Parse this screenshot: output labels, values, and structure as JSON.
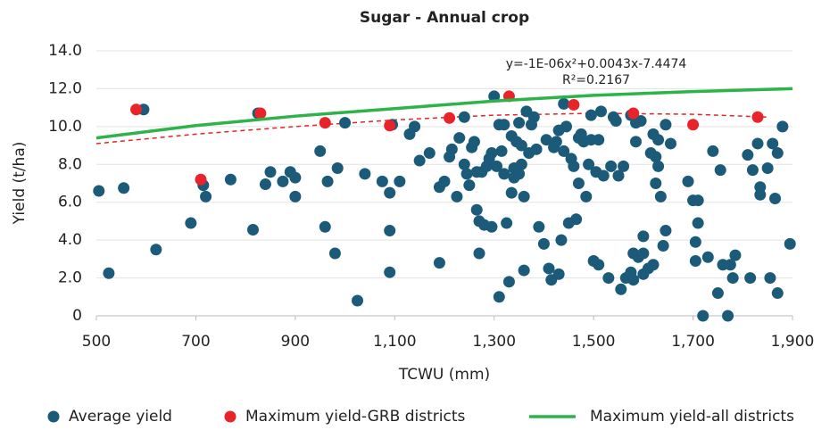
{
  "chart_data": {
    "type": "scatter",
    "title": "Sugar - Annual crop",
    "xlabel": "TCWU (mm)",
    "ylabel": "Yield (t/ha)",
    "annotations": [
      "y=-1E-06x²+0.0043x-7.4474",
      "R²=0.2167"
    ],
    "xlim": [
      500,
      1900
    ],
    "xticks": [
      500,
      700,
      900,
      {
        "value": 1100,
        "label": "1,100"
      },
      {
        "value": 1300,
        "label": "1,300"
      },
      {
        "value": 1500,
        "label": "1,500"
      },
      {
        "value": 1700,
        "label": "1,700"
      },
      {
        "value": 1900,
        "label": "1,900"
      }
    ],
    "ylim": [
      0,
      14
    ],
    "yticks": [
      0,
      {
        "value": 2,
        "label": "2.0"
      },
      {
        "value": 4,
        "label": "4.0"
      },
      {
        "value": 6,
        "label": "6.0"
      },
      {
        "value": 8,
        "label": "8.0"
      },
      {
        "value": 10,
        "label": "10.0"
      },
      {
        "value": 12,
        "label": "12.0"
      },
      {
        "value": 14,
        "label": "14.0"
      }
    ],
    "grid": true,
    "legend": "bottom",
    "series": [
      {
        "name": "Average yield",
        "color": "#1b5a78",
        "style": "points",
        "x": [
          505,
          525,
          555,
          595,
          620,
          690,
          715,
          720,
          770,
          815,
          825,
          840,
          850,
          875,
          890,
          900,
          900,
          950,
          960,
          965,
          980,
          985,
          1000,
          1025,
          1040,
          1075,
          1090,
          1090,
          1090,
          1095,
          1110,
          1130,
          1140,
          1150,
          1170,
          1190,
          1190,
          1200,
          1210,
          1215,
          1225,
          1230,
          1240,
          1240,
          1245,
          1250,
          1255,
          1260,
          1265,
          1265,
          1270,
          1270,
          1275,
          1280,
          1285,
          1290,
          1295,
          1295,
          1300,
          1305,
          1310,
          1310,
          1315,
          1320,
          1320,
          1325,
          1330,
          1335,
          1335,
          1340,
          1340,
          1345,
          1350,
          1350,
          1355,
          1355,
          1360,
          1360,
          1365,
          1370,
          1375,
          1380,
          1385,
          1390,
          1400,
          1405,
          1410,
          1415,
          1420,
          1425,
          1430,
          1430,
          1435,
          1440,
          1440,
          1445,
          1450,
          1455,
          1460,
          1465,
          1470,
          1470,
          1475,
          1480,
          1485,
          1490,
          1495,
          1495,
          1500,
          1505,
          1510,
          1510,
          1515,
          1520,
          1530,
          1535,
          1540,
          1545,
          1550,
          1555,
          1560,
          1565,
          1575,
          1575,
          1580,
          1580,
          1585,
          1585,
          1590,
          1595,
          1600,
          1600,
          1600,
          1610,
          1615,
          1620,
          1620,
          1625,
          1625,
          1630,
          1630,
          1635,
          1640,
          1645,
          1645,
          1655,
          1690,
          1700,
          1705,
          1705,
          1710,
          1710,
          1720,
          1730,
          1740,
          1750,
          1755,
          1760,
          1770,
          1775,
          1780,
          1785,
          1810,
          1815,
          1820,
          1830,
          1835,
          1835,
          1850,
          1855,
          1860,
          1865,
          1870,
          1870,
          1880,
          1895
        ],
        "values": [
          6.6,
          2.25,
          6.75,
          10.9,
          3.5,
          4.9,
          6.9,
          6.3,
          7.2,
          4.55,
          10.7,
          6.95,
          7.6,
          7.1,
          7.6,
          6.3,
          7.3,
          8.7,
          4.7,
          7.1,
          3.3,
          7.8,
          10.2,
          0.8,
          7.5,
          7.1,
          6.5,
          4.5,
          2.3,
          10.1,
          7.1,
          9.6,
          10.0,
          8.2,
          8.6,
          2.8,
          6.8,
          7.1,
          8.4,
          8.8,
          6.3,
          9.4,
          10.5,
          8.0,
          7.5,
          6.9,
          8.9,
          9.2,
          7.6,
          5.6,
          5.0,
          3.3,
          7.6,
          4.8,
          7.9,
          8.3,
          4.7,
          8.6,
          11.6,
          7.9,
          10.1,
          1.0,
          8.7,
          10.1,
          7.5,
          4.9,
          1.8,
          9.5,
          6.5,
          7.8,
          7.3,
          9.2,
          10.2,
          7.5,
          9.0,
          8.0,
          2.4,
          6.3,
          10.8,
          8.6,
          10.1,
          10.5,
          8.8,
          4.7,
          3.8,
          9.3,
          2.5,
          1.9,
          8.9,
          9.2,
          9.8,
          2.2,
          4.0,
          11.2,
          8.7,
          10.0,
          4.9,
          8.3,
          7.9,
          5.1,
          9.4,
          7.0,
          9.6,
          9.2,
          6.3,
          8.0,
          9.3,
          10.6,
          2.9,
          7.6,
          9.3,
          2.7,
          10.8,
          7.4,
          2.0,
          7.9,
          10.5,
          10.3,
          7.4,
          1.4,
          7.9,
          2.0,
          10.6,
          2.3,
          3.3,
          1.9,
          10.2,
          9.2,
          3.1,
          10.3,
          3.3,
          2.2,
          4.2,
          2.5,
          8.6,
          9.6,
          2.7,
          8.4,
          7.0,
          9.3,
          7.9,
          6.3,
          3.7,
          10.1,
          4.5,
          9.1,
          7.1,
          6.1,
          3.9,
          2.9,
          6.1,
          4.9,
          0.0,
          3.1,
          8.7,
          1.2,
          7.7,
          2.7,
          0.0,
          2.7,
          2.0,
          3.2,
          8.5,
          2.0,
          7.7,
          9.1,
          6.4,
          6.8,
          7.8,
          2.0,
          9.1,
          6.2,
          8.6,
          1.2,
          10.0,
          3.8
        ]
      },
      {
        "name": "Maximum yield-GRB districts",
        "color": "#e8232a",
        "style": "points",
        "x": [
          580,
          710,
          830,
          960,
          1090,
          1210,
          1330,
          1460,
          1580,
          1700,
          1830
        ],
        "values": [
          10.9,
          7.2,
          10.7,
          10.2,
          10.05,
          10.45,
          11.6,
          11.15,
          10.7,
          10.1,
          10.5
        ]
      },
      {
        "name": "Maximum yield-all districts",
        "color": "#2db34a",
        "style": "line",
        "x": [
          500,
          700,
          900,
          1100,
          1300,
          1500,
          1700,
          1900
        ],
        "values": [
          9.4,
          10.05,
          10.55,
          10.95,
          11.35,
          11.65,
          11.85,
          12.0
        ]
      }
    ],
    "trendline": {
      "color": "#e8232a",
      "dashed": true,
      "x": [
        500,
        700,
        900,
        1100,
        1300,
        1500,
        1700,
        1850
      ],
      "values": [
        9.1,
        9.6,
        10.0,
        10.35,
        10.6,
        10.7,
        10.65,
        10.5
      ]
    }
  }
}
